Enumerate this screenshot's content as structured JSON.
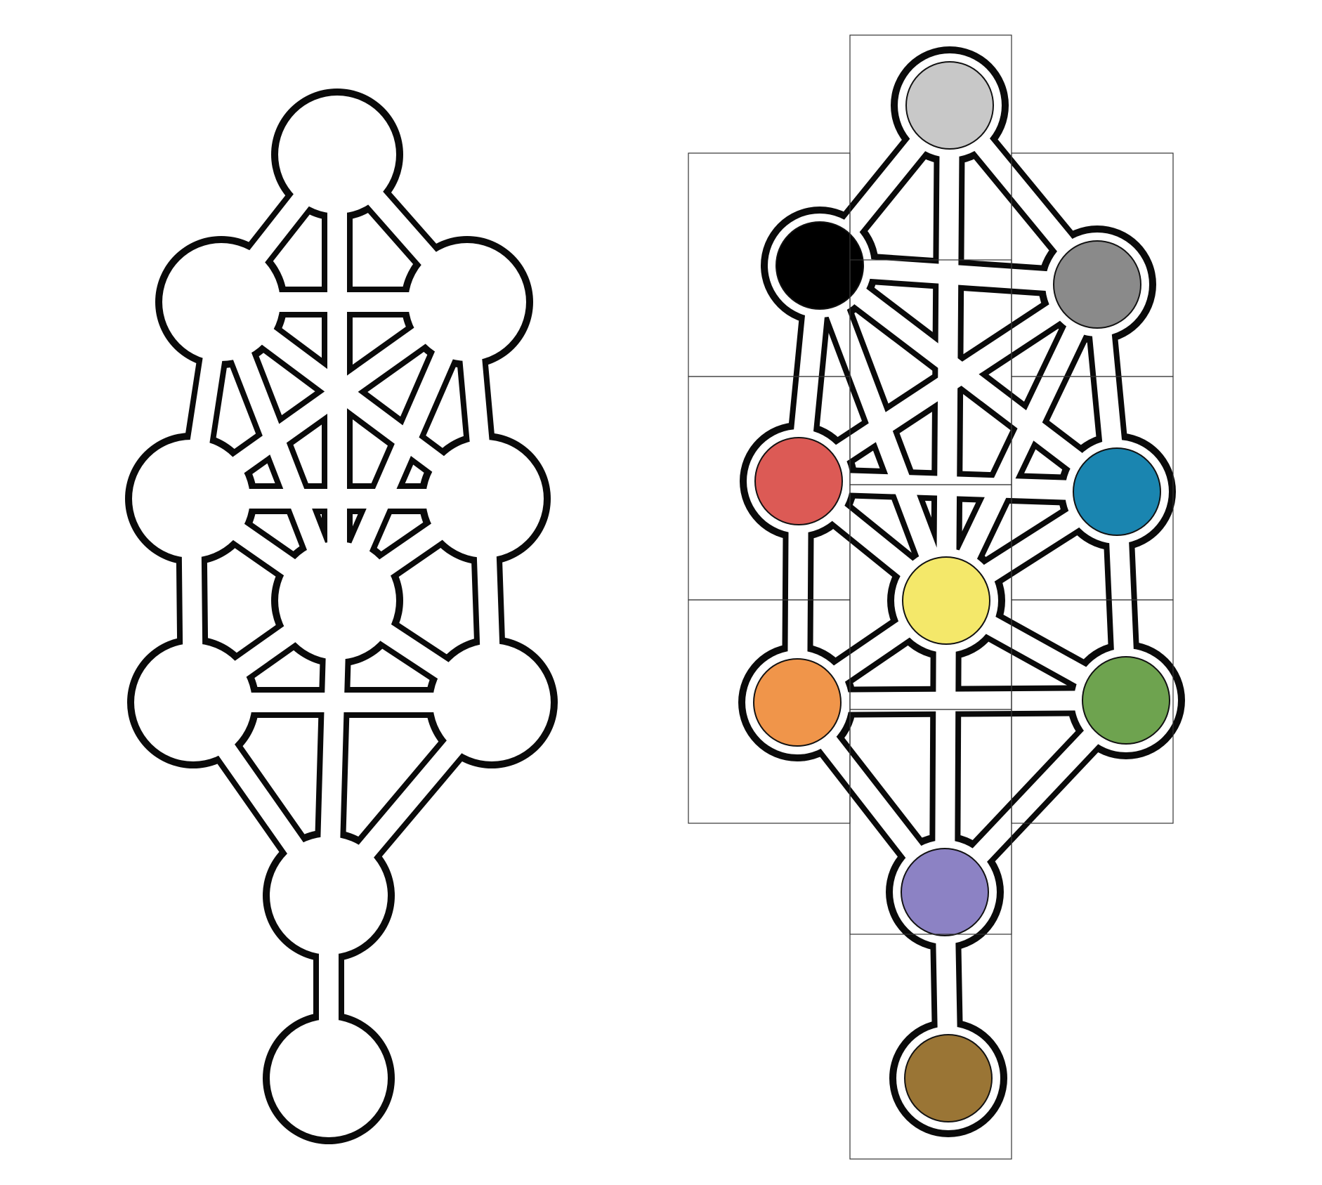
{
  "diagrams": [
    {
      "name": "plain-tree",
      "nodes": [
        {
          "id": "n1",
          "color": "#ffffff"
        },
        {
          "id": "n2",
          "color": "#ffffff"
        },
        {
          "id": "n3",
          "color": "#ffffff"
        },
        {
          "id": "n4",
          "color": "#ffffff"
        },
        {
          "id": "n5",
          "color": "#ffffff"
        },
        {
          "id": "n6",
          "color": "#ffffff"
        },
        {
          "id": "n7",
          "color": "#ffffff"
        },
        {
          "id": "n8",
          "color": "#ffffff"
        },
        {
          "id": "n9",
          "color": "#ffffff"
        },
        {
          "id": "n10",
          "color": "#ffffff"
        }
      ]
    },
    {
      "name": "colored-tree",
      "nodes": [
        {
          "id": "n1",
          "color": "#c8c8c8"
        },
        {
          "id": "n2",
          "color": "#8a8a8a"
        },
        {
          "id": "n3",
          "color": "#000000"
        },
        {
          "id": "n4",
          "color": "#1a85b0"
        },
        {
          "id": "n5",
          "color": "#dc5a55"
        },
        {
          "id": "n6",
          "color": "#f4e86a"
        },
        {
          "id": "n7",
          "color": "#6ea34f"
        },
        {
          "id": "n8",
          "color": "#f0954a"
        },
        {
          "id": "n9",
          "color": "#8c82c4"
        },
        {
          "id": "n10",
          "color": "#9a7535"
        }
      ]
    }
  ],
  "edges": [
    [
      "n1",
      "n2"
    ],
    [
      "n1",
      "n3"
    ],
    [
      "n1",
      "n6"
    ],
    [
      "n2",
      "n3"
    ],
    [
      "n2",
      "n4"
    ],
    [
      "n2",
      "n6"
    ],
    [
      "n2",
      "n5"
    ],
    [
      "n3",
      "n5"
    ],
    [
      "n3",
      "n6"
    ],
    [
      "n3",
      "n4"
    ],
    [
      "n4",
      "n5"
    ],
    [
      "n4",
      "n6"
    ],
    [
      "n4",
      "n7"
    ],
    [
      "n5",
      "n6"
    ],
    [
      "n5",
      "n8"
    ],
    [
      "n6",
      "n7"
    ],
    [
      "n6",
      "n8"
    ],
    [
      "n6",
      "n9"
    ],
    [
      "n7",
      "n8"
    ],
    [
      "n7",
      "n9"
    ],
    [
      "n8",
      "n9"
    ],
    [
      "n9",
      "n10"
    ]
  ]
}
